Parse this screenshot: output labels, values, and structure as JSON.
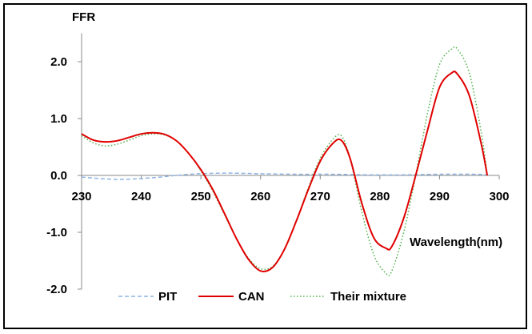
{
  "chart_data": {
    "type": "line",
    "title": "",
    "ylabel": "FFR",
    "xlabel": "Wavelength(nm)",
    "xlim": [
      230,
      300
    ],
    "ylim": [
      -2.0,
      2.5
    ],
    "x_ticks": [
      230,
      240,
      250,
      260,
      270,
      280,
      290,
      300
    ],
    "y_ticks": [
      2.0,
      1.0,
      0.0,
      -1.0,
      -2.0
    ],
    "x_tick_labels": [
      "230",
      "240",
      "250",
      "260",
      "270",
      "280",
      "290",
      "300"
    ],
    "y_tick_labels": [
      "2.0",
      "1.0",
      "0.0",
      "-1.0",
      "-2.0"
    ],
    "grid": false,
    "legend_position": "bottom",
    "series": [
      {
        "name": "PIT",
        "color": "#8eb4e3",
        "style": "dashed",
        "x": [
          230,
          236,
          242,
          248,
          254,
          260,
          266,
          272,
          278,
          284,
          290,
          296,
          298
        ],
        "y": [
          -0.03,
          -0.07,
          -0.04,
          0.02,
          0.04,
          0.03,
          0.02,
          0.02,
          0.01,
          0.01,
          0.02,
          0.02,
          0.01
        ]
      },
      {
        "name": "CAN",
        "color": "#e00000",
        "style": "solid",
        "x": [
          230,
          232,
          234,
          236,
          238,
          240,
          242,
          244,
          246,
          248,
          250,
          252,
          254,
          256,
          258,
          260,
          262,
          264,
          266,
          268,
          270,
          272,
          273.5,
          275,
          277,
          279,
          281,
          282,
          284,
          286,
          288,
          290,
          292,
          293,
          295,
          297,
          298
        ],
        "y": [
          0.73,
          0.62,
          0.59,
          0.61,
          0.67,
          0.73,
          0.75,
          0.72,
          0.6,
          0.38,
          0.1,
          -0.25,
          -0.68,
          -1.12,
          -1.48,
          -1.68,
          -1.62,
          -1.3,
          -0.8,
          -0.25,
          0.25,
          0.55,
          0.62,
          0.3,
          -0.5,
          -1.1,
          -1.28,
          -1.25,
          -0.75,
          0.0,
          0.8,
          1.55,
          1.8,
          1.78,
          1.4,
          0.55,
          0.0
        ]
      },
      {
        "name": "Their mixture",
        "color": "#4daf4a",
        "style": "dotted",
        "x": [
          230,
          232,
          234,
          236,
          238,
          240,
          242,
          244,
          246,
          248,
          250,
          252,
          254,
          256,
          258,
          260,
          262,
          264,
          266,
          268,
          270,
          272,
          273.5,
          275,
          277,
          279,
          281,
          282,
          284,
          286,
          288,
          290,
          292,
          293,
          295,
          297,
          298
        ],
        "y": [
          0.7,
          0.57,
          0.52,
          0.55,
          0.62,
          0.7,
          0.73,
          0.71,
          0.6,
          0.38,
          0.08,
          -0.28,
          -0.7,
          -1.12,
          -1.46,
          -1.64,
          -1.6,
          -1.3,
          -0.8,
          -0.22,
          0.3,
          0.62,
          0.7,
          0.3,
          -0.65,
          -1.4,
          -1.72,
          -1.68,
          -1.0,
          0.0,
          1.1,
          1.95,
          2.22,
          2.22,
          1.8,
          0.75,
          0.0
        ]
      }
    ]
  }
}
